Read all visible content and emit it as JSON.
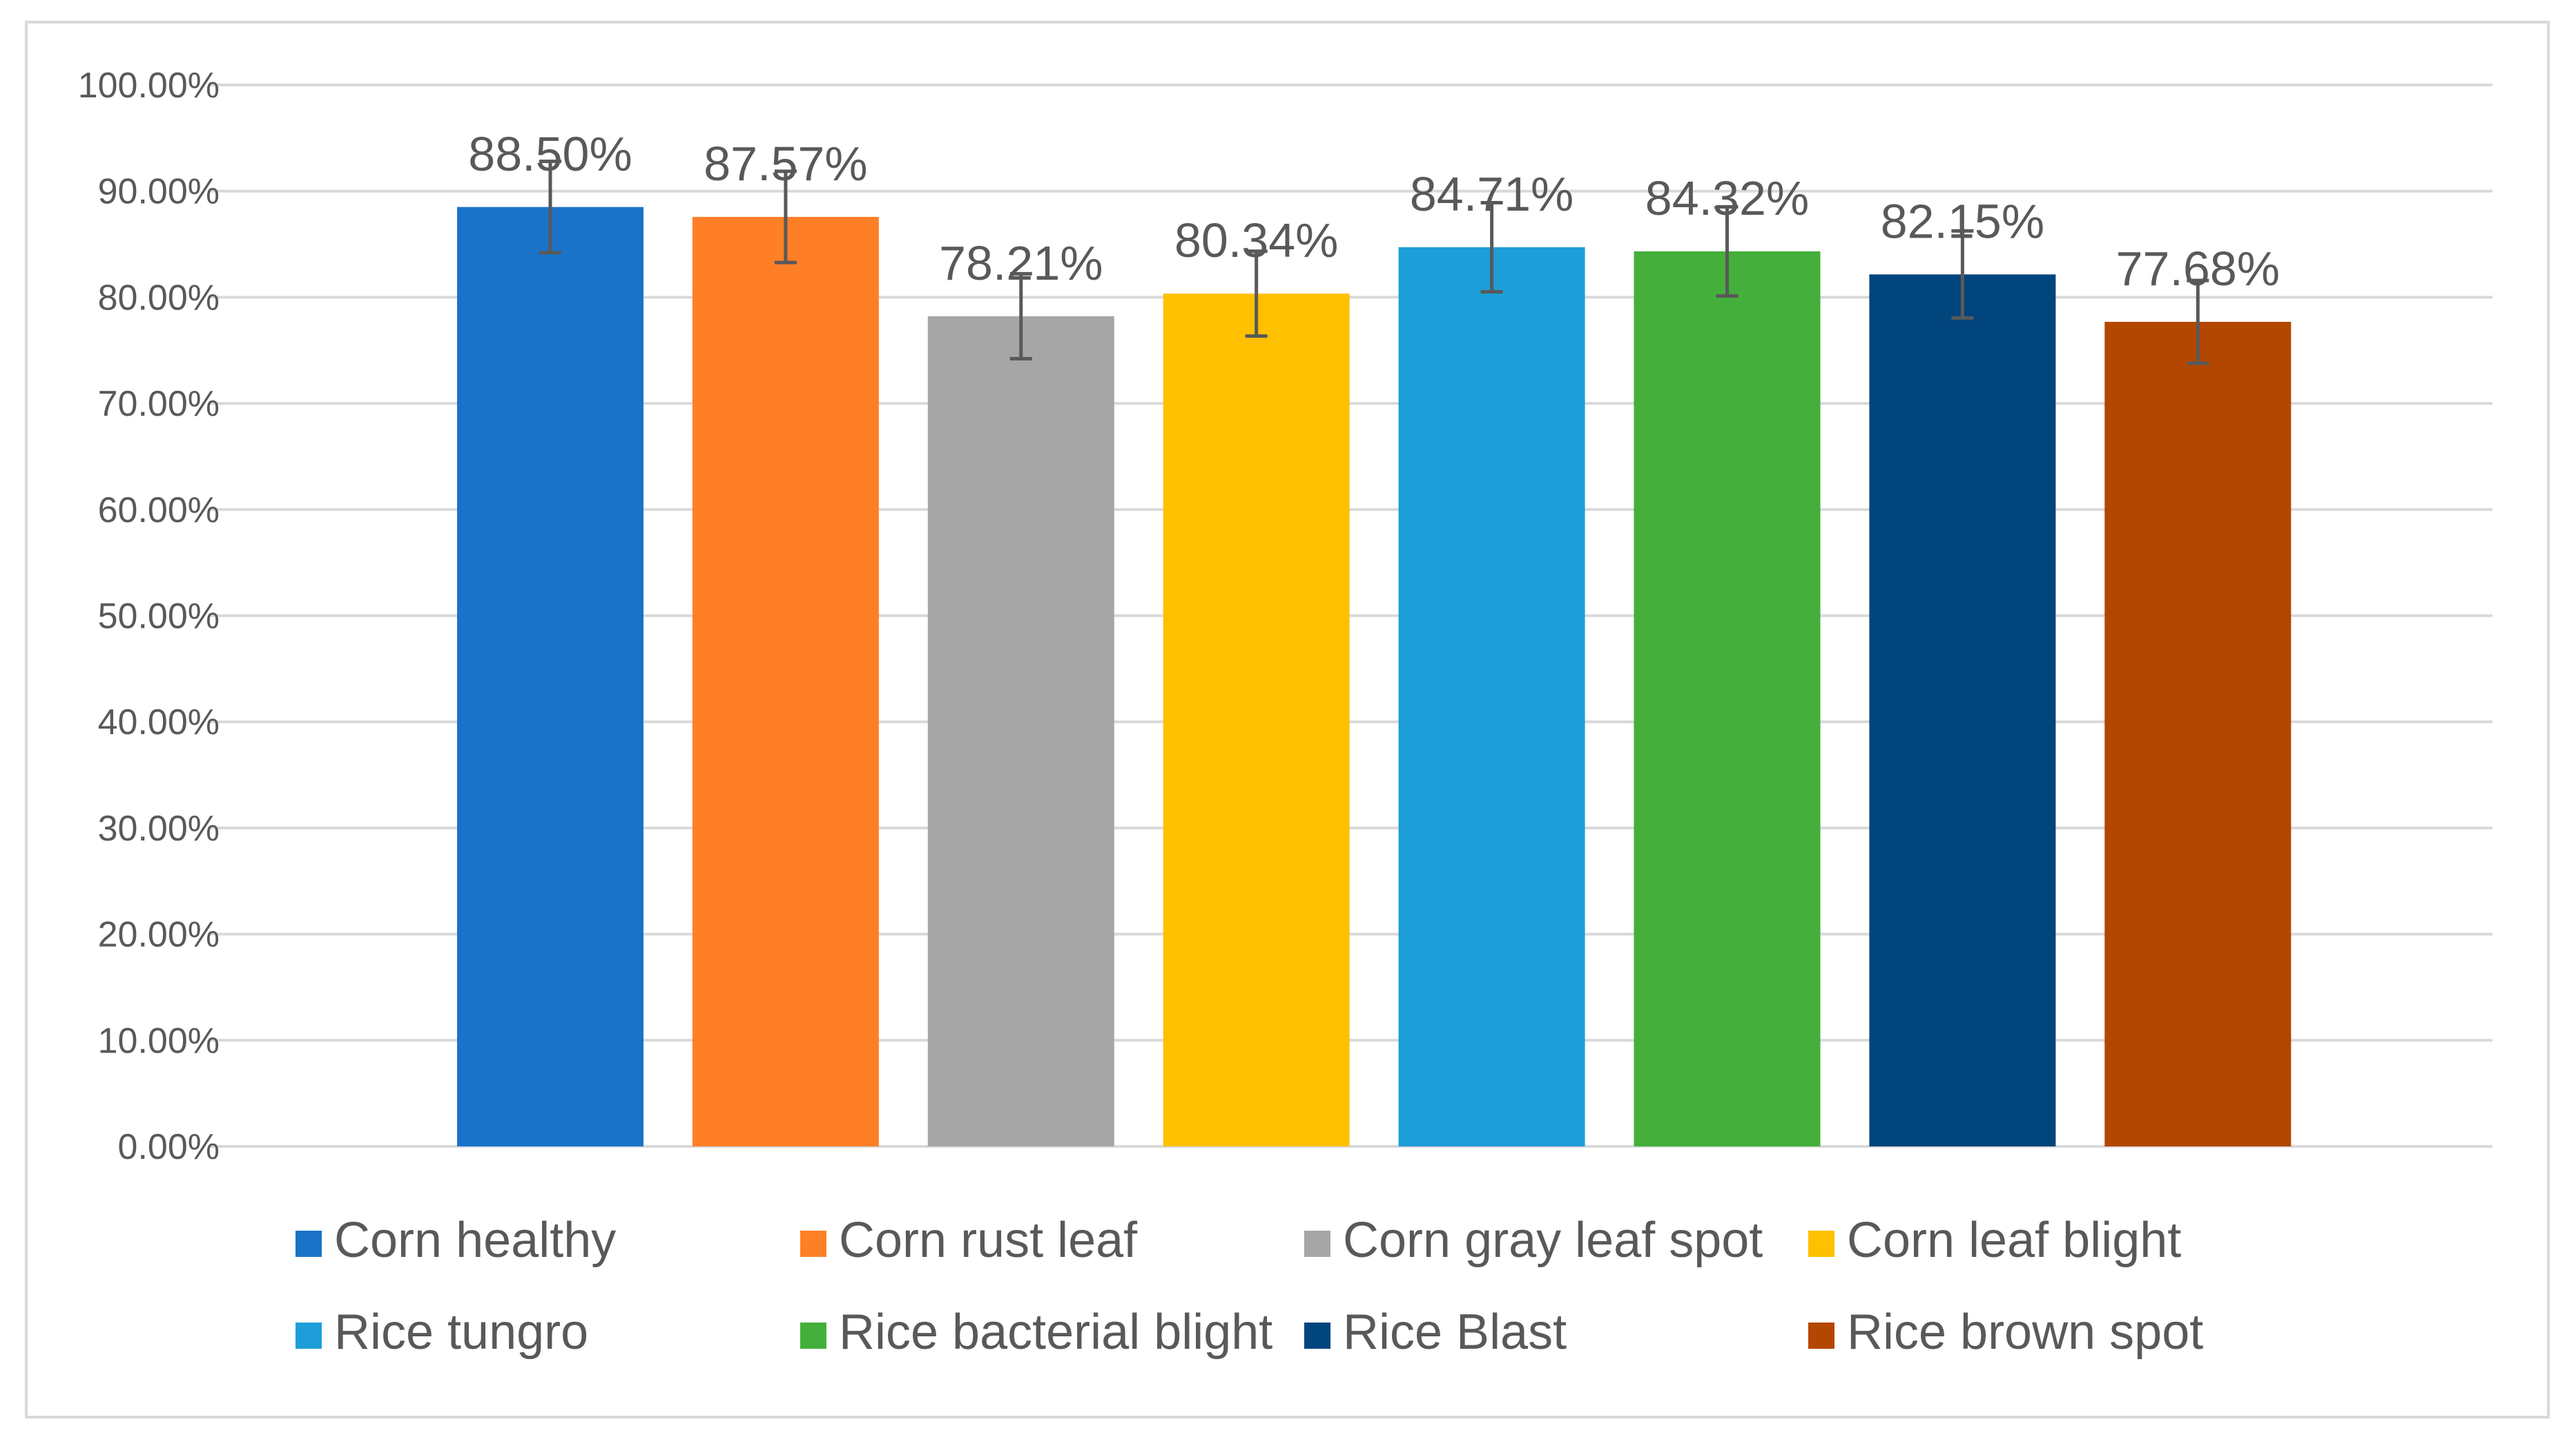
{
  "chart_data": {
    "type": "bar",
    "categories": [
      "Corn healthy",
      "Corn rust leaf",
      "Corn gray leaf spot",
      "Corn leaf blight",
      "Rice tungro",
      "Rice bacterial blight",
      "Rice Blast",
      "Rice brown spot"
    ],
    "values": [
      88.5,
      87.57,
      78.21,
      80.34,
      84.71,
      84.32,
      82.15,
      77.68
    ],
    "data_labels": [
      "88.50%",
      "87.57%",
      "78.21%",
      "80.34%",
      "84.71%",
      "84.32%",
      "82.15%",
      "77.68%"
    ],
    "error": [
      4.3,
      4.3,
      4.0,
      4.0,
      4.2,
      4.2,
      4.1,
      3.9
    ],
    "colors": [
      "#1A73C8",
      "#FF7F27",
      "#A6A6A6",
      "#FFC000",
      "#1E9ED8",
      "#44AF3A",
      "#00457C",
      "#B34700"
    ],
    "error_bar_color": "#595959",
    "ylim": [
      0,
      100
    ],
    "yticks": [
      0,
      10,
      20,
      30,
      40,
      50,
      60,
      70,
      80,
      90,
      100
    ],
    "ytick_labels": [
      "0.00%",
      "10.00%",
      "20.00%",
      "30.00%",
      "40.00%",
      "50.00%",
      "60.00%",
      "70.00%",
      "80.00%",
      "90.00%",
      "100.00%"
    ],
    "grid": true,
    "legend_position": "bottom",
    "title": "",
    "xlabel": "",
    "ylabel": ""
  }
}
